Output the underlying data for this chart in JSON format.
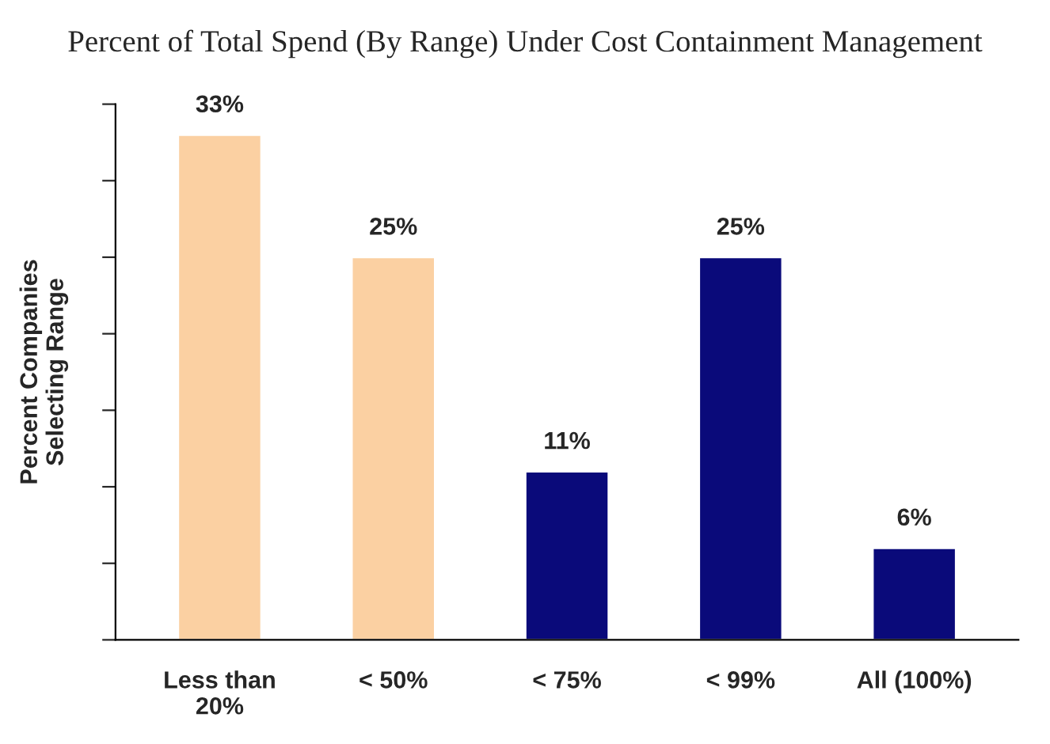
{
  "chart_data": {
    "type": "bar",
    "title": "Percent of Total Spend (By Range) Under Cost Containment Management",
    "ylabel": "Percent Companies\nSelecting Range",
    "categories": [
      "Less than\n20%",
      "< 50%",
      "< 75%",
      "< 99%",
      "All (100%)"
    ],
    "values": [
      33,
      25,
      11,
      25,
      6
    ],
    "colors": [
      "#fbd0a2",
      "#fbd0a2",
      "#0a0a7a",
      "#0a0a7a",
      "#0a0a7a"
    ],
    "value_labels": [
      "33%",
      "25%",
      "11%",
      "25%",
      "6%"
    ],
    "ylim": [
      0,
      35
    ],
    "yticks": [
      {
        "value": 0,
        "label": null
      },
      {
        "value": 5,
        "label": null
      },
      {
        "value": 10,
        "label": null
      },
      {
        "value": 15,
        "label": null
      },
      {
        "value": 20,
        "label": null
      },
      {
        "value": 25,
        "label": null
      },
      {
        "value": 30,
        "label": null
      },
      {
        "value": 35,
        "label": null
      }
    ],
    "tick_labels": "x",
    "grid": false,
    "legend": false
  }
}
